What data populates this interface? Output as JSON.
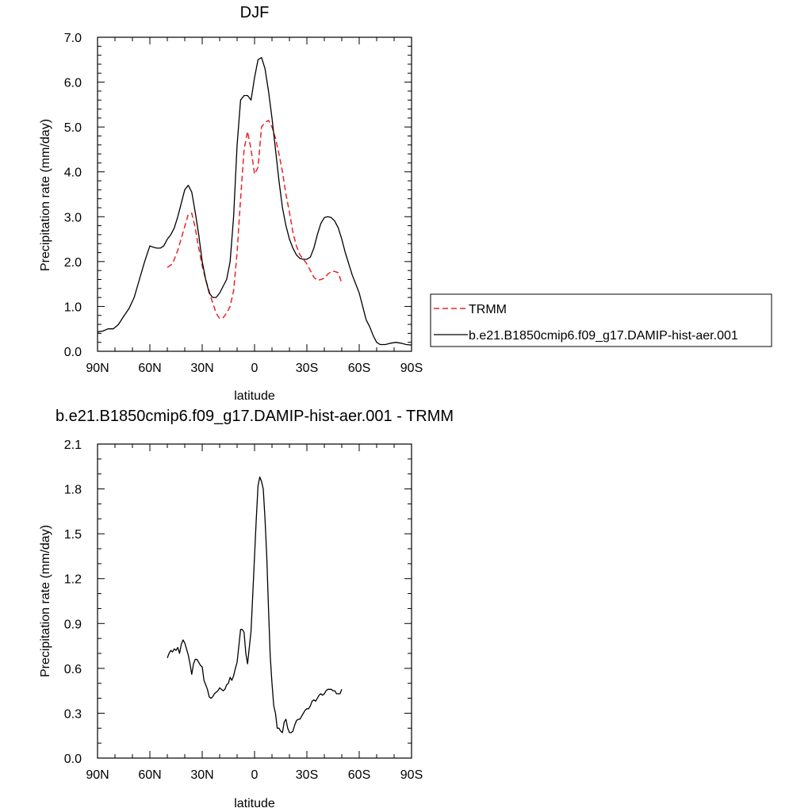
{
  "chart_data": [
    {
      "type": "line",
      "title": "DJF",
      "xlabel": "latitude",
      "ylabel": "Precipitation rate (mm/day)",
      "xlim": [
        90,
        -90
      ],
      "ylim": [
        0.0,
        7.0
      ],
      "x_ticks": [
        90,
        60,
        30,
        0,
        -30,
        -60,
        -90
      ],
      "x_tick_labels": [
        "90N",
        "60N",
        "30N",
        "0",
        "30S",
        "60S",
        "90S"
      ],
      "y_ticks": [
        0.0,
        1.0,
        2.0,
        3.0,
        4.0,
        5.0,
        6.0,
        7.0
      ],
      "y_tick_labels": [
        "0.0",
        "1.0",
        "2.0",
        "3.0",
        "4.0",
        "5.0",
        "6.0",
        "7.0"
      ],
      "grid": false,
      "legend": {
        "placement": "right",
        "entries": [
          "TRMM",
          "b.e21.B1850cmip6.f09_g17.DAMIP-hist-aer.001"
        ]
      },
      "series": [
        {
          "name": "TRMM",
          "color": "#e8252a",
          "dash": "dashed",
          "x": [
            50,
            47,
            44,
            41,
            38,
            36,
            34,
            32,
            30,
            28,
            25,
            22,
            20,
            18,
            16,
            14,
            12,
            10,
            8,
            6,
            4,
            2,
            0,
            -2,
            -4,
            -6,
            -8,
            -10,
            -12,
            -14,
            -16,
            -18,
            -20,
            -22,
            -24,
            -26,
            -28,
            -30,
            -32,
            -34,
            -36,
            -38,
            -40,
            -42,
            -44,
            -46,
            -48,
            -50
          ],
          "y": [
            1.87,
            1.95,
            2.25,
            2.65,
            3.05,
            3.08,
            2.75,
            2.3,
            1.9,
            1.6,
            1.2,
            0.85,
            0.73,
            0.75,
            0.85,
            1.0,
            1.35,
            2.2,
            3.4,
            4.5,
            4.9,
            4.5,
            3.95,
            4.1,
            5.0,
            5.1,
            5.15,
            5.0,
            4.75,
            4.4,
            4.0,
            3.5,
            3.1,
            2.65,
            2.35,
            2.15,
            2.05,
            1.95,
            1.8,
            1.65,
            1.58,
            1.6,
            1.63,
            1.72,
            1.78,
            1.78,
            1.75,
            1.52
          ]
        },
        {
          "name": "b.e21.B1850cmip6.f09_g17.DAMIP-hist-aer.001",
          "color": "#000000",
          "dash": "solid",
          "x": [
            90,
            87,
            84,
            81,
            78,
            75,
            72,
            69,
            66,
            63,
            60,
            58,
            56,
            54,
            52,
            50,
            48,
            46,
            44,
            42,
            40,
            38,
            36,
            34,
            32,
            30,
            28,
            26,
            24,
            22,
            20,
            18,
            16,
            14,
            12,
            10,
            8,
            6,
            4,
            2,
            0,
            -2,
            -4,
            -6,
            -8,
            -10,
            -12,
            -14,
            -16,
            -18,
            -20,
            -22,
            -24,
            -26,
            -28,
            -30,
            -32,
            -34,
            -36,
            -38,
            -40,
            -42,
            -44,
            -46,
            -48,
            -50,
            -52,
            -54,
            -56,
            -58,
            -60,
            -62,
            -64,
            -66,
            -68,
            -70,
            -72,
            -75,
            -78,
            -81,
            -84,
            -87,
            -90
          ],
          "y": [
            0.43,
            0.45,
            0.5,
            0.5,
            0.6,
            0.78,
            0.95,
            1.2,
            1.6,
            2.0,
            2.35,
            2.32,
            2.3,
            2.3,
            2.35,
            2.5,
            2.6,
            2.75,
            3.0,
            3.3,
            3.6,
            3.7,
            3.55,
            3.1,
            2.6,
            2.0,
            1.6,
            1.3,
            1.2,
            1.2,
            1.3,
            1.45,
            1.6,
            2.0,
            3.0,
            4.6,
            5.6,
            5.7,
            5.7,
            5.6,
            6.1,
            6.5,
            6.55,
            6.3,
            5.8,
            5.2,
            4.5,
            3.8,
            3.2,
            2.8,
            2.5,
            2.3,
            2.15,
            2.07,
            2.05,
            2.05,
            2.1,
            2.3,
            2.6,
            2.85,
            2.98,
            3.0,
            2.98,
            2.9,
            2.75,
            2.5,
            2.2,
            1.95,
            1.7,
            1.5,
            1.3,
            1.0,
            0.7,
            0.55,
            0.35,
            0.2,
            0.15,
            0.15,
            0.18,
            0.2,
            0.18,
            0.15,
            0.14
          ]
        }
      ]
    },
    {
      "type": "line",
      "title": "b.e21.B1850cmip6.f09_g17.DAMIP-hist-aer.001 - TRMM",
      "xlabel": "latitude",
      "ylabel": "Precipitation rate (mm/day)",
      "xlim": [
        90,
        -90
      ],
      "ylim": [
        0.0,
        2.1
      ],
      "x_ticks": [
        90,
        60,
        30,
        0,
        -30,
        -60,
        -90
      ],
      "x_tick_labels": [
        "90N",
        "60N",
        "30N",
        "0",
        "30S",
        "60S",
        "90S"
      ],
      "y_ticks": [
        0.0,
        0.3,
        0.6,
        0.9,
        1.2,
        1.5,
        1.8,
        2.1
      ],
      "y_tick_labels": [
        "0.0",
        "0.3",
        "0.6",
        "0.9",
        "1.2",
        "1.5",
        "1.8",
        "2.1"
      ],
      "grid": false,
      "series": [
        {
          "name": "",
          "color": "#000000",
          "dash": "solid",
          "x": [
            50,
            49,
            48,
            47,
            46,
            45,
            44,
            43,
            42,
            41,
            40,
            39,
            38,
            37,
            36,
            35,
            34,
            33,
            32,
            31,
            30,
            29,
            28,
            27,
            26,
            25,
            24,
            23,
            22,
            21,
            20,
            19,
            18,
            17,
            16,
            15,
            14,
            13,
            12,
            11,
            10,
            9,
            8,
            7,
            6,
            5,
            4,
            3,
            2,
            1,
            0,
            -1,
            -2,
            -3,
            -4,
            -5,
            -6,
            -7,
            -8,
            -9,
            -10,
            -11,
            -12,
            -13,
            -14,
            -15,
            -16,
            -17,
            -18,
            -19,
            -20,
            -21,
            -22,
            -23,
            -24,
            -25,
            -26,
            -27,
            -28,
            -29,
            -30,
            -31,
            -32,
            -33,
            -34,
            -35,
            -36,
            -37,
            -38,
            -39,
            -40,
            -41,
            -42,
            -43,
            -44,
            -45,
            -46,
            -47,
            -48,
            -49,
            -50
          ],
          "y": [
            0.67,
            0.7,
            0.72,
            0.71,
            0.73,
            0.72,
            0.74,
            0.7,
            0.76,
            0.79,
            0.77,
            0.73,
            0.69,
            0.63,
            0.56,
            0.63,
            0.66,
            0.66,
            0.64,
            0.62,
            0.61,
            0.52,
            0.49,
            0.46,
            0.41,
            0.4,
            0.41,
            0.43,
            0.44,
            0.45,
            0.47,
            0.46,
            0.45,
            0.46,
            0.49,
            0.5,
            0.54,
            0.52,
            0.55,
            0.6,
            0.64,
            0.75,
            0.86,
            0.86,
            0.84,
            0.7,
            0.63,
            0.74,
            0.85,
            1.1,
            1.35,
            1.6,
            1.82,
            1.88,
            1.85,
            1.8,
            1.6,
            1.35,
            1.0,
            0.68,
            0.5,
            0.35,
            0.3,
            0.2,
            0.2,
            0.18,
            0.17,
            0.24,
            0.26,
            0.2,
            0.17,
            0.17,
            0.18,
            0.22,
            0.25,
            0.26,
            0.26,
            0.28,
            0.3,
            0.32,
            0.33,
            0.33,
            0.35,
            0.38,
            0.39,
            0.38,
            0.4,
            0.42,
            0.43,
            0.42,
            0.43,
            0.45,
            0.46,
            0.46,
            0.46,
            0.45,
            0.45,
            0.43,
            0.43,
            0.43,
            0.46
          ]
        }
      ]
    }
  ]
}
